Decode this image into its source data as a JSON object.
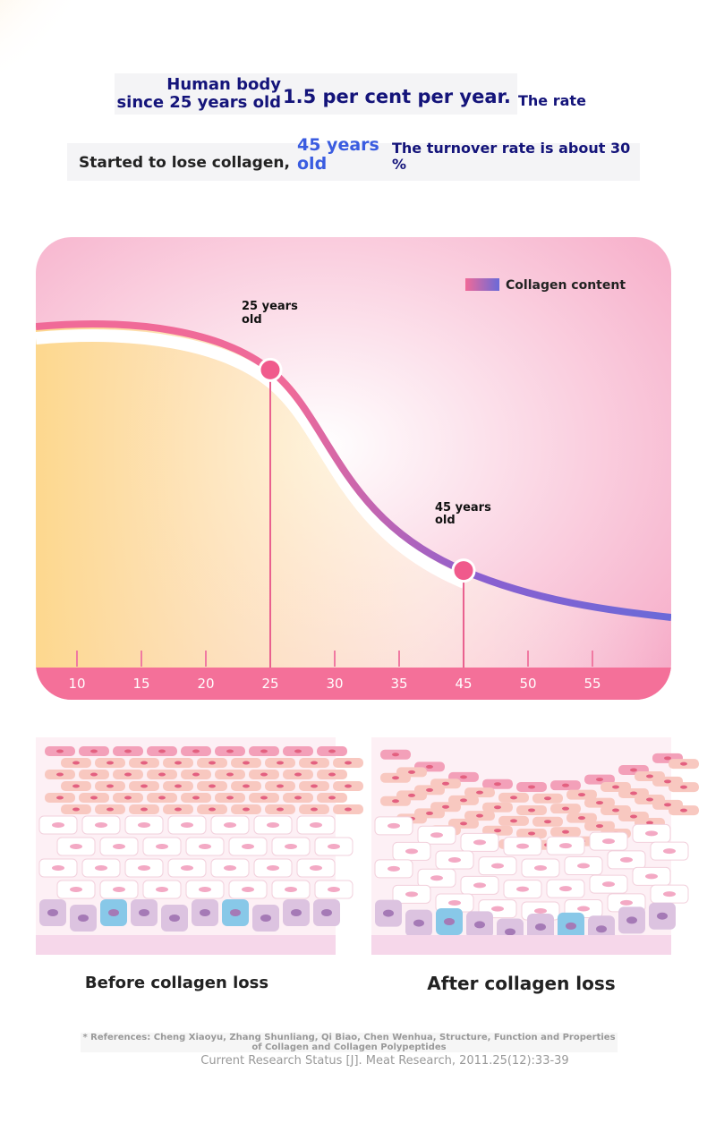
{
  "header": {
    "since": "Human body since 25 years old",
    "rate_value": "1.5 per cent per year.",
    "rate": "The rate",
    "started": "Started to lose collagen,",
    "age": "45 years old",
    "turnover": "The turnover rate is about 30 %"
  },
  "chart_data": {
    "type": "line",
    "legend": "Collagen content",
    "categories": [
      10,
      15,
      20,
      25,
      30,
      35,
      45,
      50,
      55
    ],
    "markers": [
      {
        "x": 25,
        "label": "25 years old"
      },
      {
        "x": 45,
        "label": "45 years old"
      }
    ]
  },
  "captions": {
    "before": "Before collagen loss",
    "after": "After collagen loss"
  },
  "references": {
    "line1": "* References: Cheng Xiaoyu, Zhang Shunliang, Qi Biao, Chen Wenhua, Structure, Function and Properties of Collagen and Collagen Polypeptides",
    "line2": "Current Research Status [J]. Meat Research, 2011.25(12):33-39"
  }
}
